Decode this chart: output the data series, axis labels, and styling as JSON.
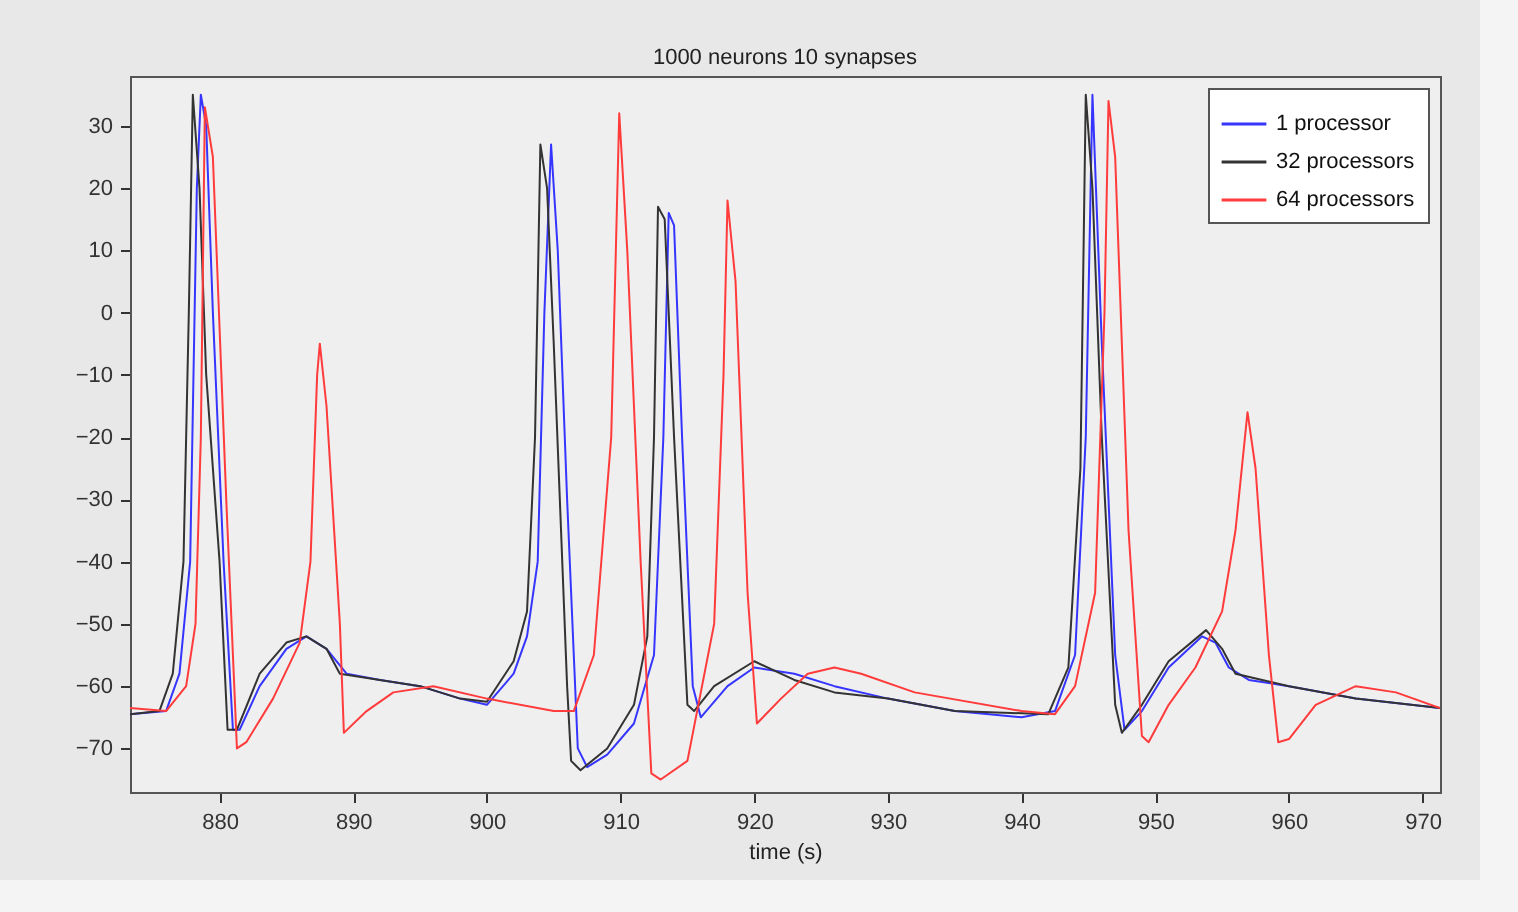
{
  "chart_data": {
    "type": "line",
    "title": "1000 neurons 10 synapses",
    "xlabel": "time (s)",
    "xlim": [
      873.3,
      971.3
    ],
    "ylim": [
      -77,
      38
    ],
    "xticks": [
      880,
      890,
      900,
      910,
      920,
      930,
      940,
      950,
      960,
      970
    ],
    "yticks": [
      -70,
      -60,
      -50,
      -40,
      -30,
      -20,
      -10,
      0,
      10,
      20,
      30
    ],
    "grid": false,
    "legend": "top right",
    "line_style": "solid",
    "marker": "none",
    "series": [
      {
        "name": "1 processor",
        "color": "#3535ff",
        "x": [
          873.3,
          876,
          877,
          877.8,
          878.3,
          878.6,
          879,
          879.5,
          880.3,
          881,
          881.5,
          883,
          885,
          886.5,
          888,
          889.5,
          892,
          895,
          898,
          900,
          902,
          903,
          903.8,
          904.3,
          904.8,
          905.3,
          906,
          906.8,
          907.5,
          909,
          911,
          912.5,
          913.2,
          913.6,
          914,
          914.6,
          915.4,
          916,
          918,
          920,
          923,
          926,
          930,
          935,
          940,
          942.5,
          944,
          944.8,
          945.3,
          946,
          947,
          947.7,
          949,
          951,
          953.5,
          954.5,
          955.5,
          957,
          960,
          965,
          971.3
        ],
        "values": [
          -64.5,
          -64,
          -58,
          -40,
          20,
          35,
          30,
          0,
          -40,
          -67,
          -67,
          -60,
          -54,
          -52,
          -54,
          -58,
          -59,
          -60,
          -62,
          -63,
          -58,
          -52,
          -40,
          0,
          27,
          10,
          -30,
          -70,
          -73,
          -71,
          -66,
          -55,
          -20,
          16,
          14,
          -20,
          -60,
          -65,
          -60,
          -57,
          -58,
          -60,
          -62,
          -64,
          -65,
          -64,
          -55,
          -20,
          35,
          -5,
          -55,
          -67,
          -64,
          -57,
          -52,
          -53,
          -57,
          -59,
          -60,
          -62,
          -63.5
        ]
      },
      {
        "name": "32 processors",
        "color": "#333333",
        "x": [
          873.3,
          875.5,
          876.5,
          877.3,
          877.7,
          878,
          878.5,
          879,
          880,
          880.6,
          881.3,
          883,
          885,
          886.5,
          888,
          889,
          892,
          895,
          898,
          900,
          902,
          903,
          903.6,
          904,
          904.5,
          905,
          906,
          906.3,
          907,
          909,
          911,
          912,
          912.5,
          912.8,
          913.3,
          914,
          915,
          915.5,
          917,
          920,
          923,
          926,
          930,
          935,
          942,
          943.5,
          944.4,
          944.8,
          945.3,
          946,
          947,
          947.5,
          949,
          951,
          953.8,
          955,
          956,
          958,
          960,
          965,
          971.3
        ],
        "values": [
          -64.5,
          -64,
          -58,
          -40,
          0,
          35,
          20,
          -10,
          -40,
          -67,
          -67,
          -58,
          -53,
          -52,
          -54,
          -58,
          -59,
          -60,
          -62,
          -62.5,
          -56,
          -48,
          -20,
          27,
          20,
          -5,
          -60,
          -72,
          -73.5,
          -70,
          -63,
          -52,
          -20,
          17,
          15,
          -20,
          -63,
          -64,
          -60,
          -56,
          -59,
          -61,
          -62,
          -64,
          -64.5,
          -57,
          -25,
          35,
          20,
          -20,
          -63,
          -67.5,
          -63,
          -56,
          -51,
          -54,
          -58,
          -59,
          -60,
          -62,
          -63.5
        ]
      },
      {
        "name": "64 processors",
        "color": "#ff3b3b",
        "x": [
          873.3,
          876,
          877.5,
          878.2,
          878.6,
          878.9,
          879.5,
          880.5,
          881.3,
          882,
          884,
          886,
          886.8,
          887.3,
          887.5,
          888,
          889,
          889.3,
          891,
          893,
          896,
          900,
          905,
          906.5,
          908,
          909.3,
          909.9,
          910.5,
          911.5,
          912.3,
          913,
          915,
          917,
          917.7,
          918,
          918.6,
          919.5,
          920.2,
          922,
          924,
          926,
          928,
          932,
          940,
          942.5,
          944,
          945.5,
          946.2,
          946.5,
          947,
          948,
          949,
          949.5,
          951,
          953,
          955,
          956,
          956.9,
          957.5,
          958.5,
          959.2,
          960,
          962,
          965,
          968,
          971.3
        ],
        "values": [
          -63.5,
          -64,
          -60,
          -50,
          -20,
          33,
          25,
          -30,
          -70,
          -69,
          -62,
          -53,
          -40,
          -10,
          -5,
          -15,
          -50,
          -67.5,
          -64,
          -61,
          -60,
          -62,
          -64,
          -64,
          -55,
          -20,
          32,
          10,
          -40,
          -74,
          -75,
          -72,
          -50,
          -10,
          18,
          5,
          -45,
          -66,
          -62,
          -58,
          -57,
          -58,
          -61,
          -64,
          -64.5,
          -60,
          -45,
          0,
          34,
          25,
          -35,
          -68,
          -69,
          -63,
          -57,
          -48,
          -35,
          -16,
          -25,
          -55,
          -69,
          -68.5,
          -63,
          -60,
          -61,
          -63.5
        ]
      }
    ]
  }
}
